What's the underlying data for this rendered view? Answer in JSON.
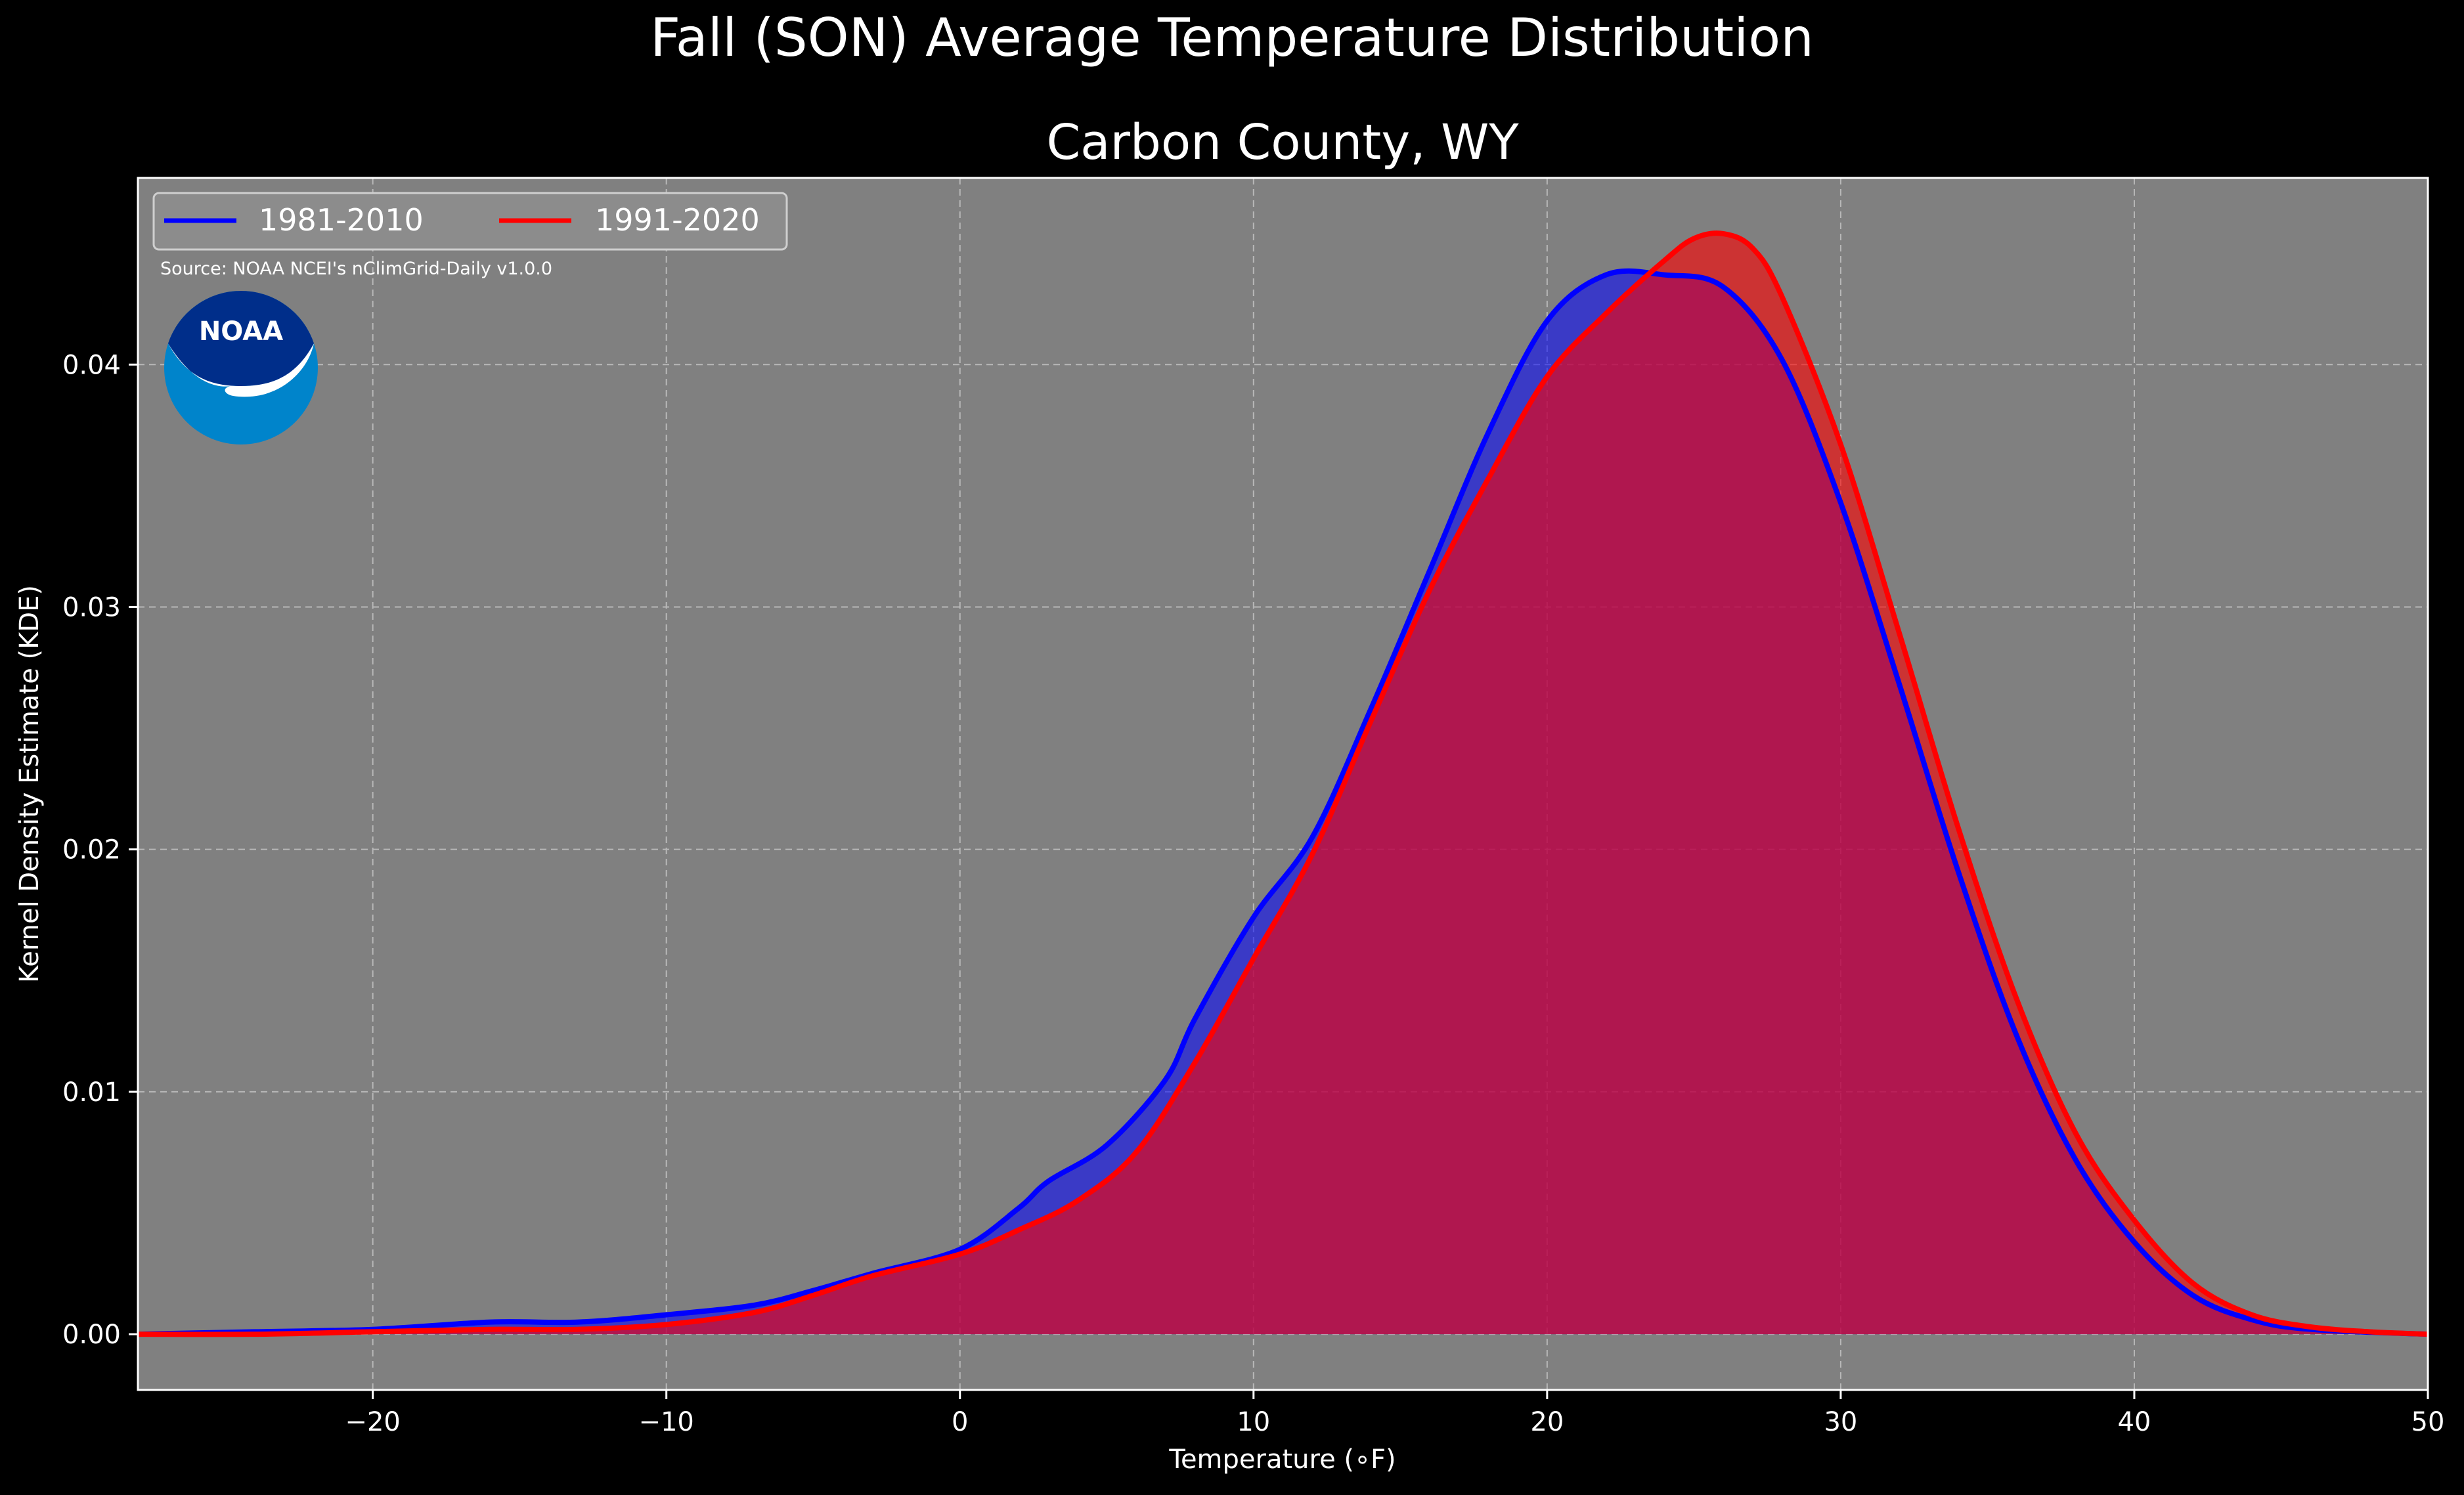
{
  "suptitle": "Fall (SON) Average Temperature Distribution",
  "source_note": "Source: NOAA NCEI's nClimGrid-Daily v1.0.0",
  "logo": {
    "icon": "noaa-logo",
    "text": "NOAA",
    "colors": {
      "outer": "#0084CB",
      "inner": "#002E8A",
      "bird": "#FFFFFF"
    }
  },
  "colors": {
    "background": "#000000",
    "axes_face": "#808080",
    "series_1": "#0000FF",
    "series_2": "#FF0000",
    "fill_overlap": "#A01E5E"
  },
  "chart_data": {
    "type": "area",
    "title": "Carbon County, WY",
    "xlabel": "Temperature (∘F)",
    "ylabel": "Kernel Density Estimate (KDE)",
    "xlim": [
      -28,
      50
    ],
    "ylim": [
      -0.0023,
      0.0477
    ],
    "xticks": [
      -20,
      -10,
      0,
      10,
      20,
      30,
      40,
      50
    ],
    "xtick_labels": [
      "−20",
      "−10",
      "0",
      "10",
      "20",
      "30",
      "40",
      "50"
    ],
    "yticks": [
      0.0,
      0.01,
      0.02,
      0.03,
      0.04
    ],
    "ytick_labels": [
      "0.00",
      "0.01",
      "0.02",
      "0.03",
      "0.04"
    ],
    "grid": true,
    "legend_position": "upper-left",
    "series": [
      {
        "name": "1981-2010",
        "color": "#0000FF",
        "points": [
          [
            -28,
            0
          ],
          [
            -24,
            0.0001
          ],
          [
            -20,
            0.0002
          ],
          [
            -16,
            0.0005
          ],
          [
            -13,
            0.0005
          ],
          [
            -10,
            0.0008
          ],
          [
            -7,
            0.0012
          ],
          [
            -5,
            0.0018
          ],
          [
            -3,
            0.0025
          ],
          [
            0,
            0.0035
          ],
          [
            2,
            0.0052
          ],
          [
            3,
            0.0063
          ],
          [
            5,
            0.0078
          ],
          [
            7,
            0.0105
          ],
          [
            8,
            0.013
          ],
          [
            10,
            0.0172
          ],
          [
            12,
            0.0205
          ],
          [
            14,
            0.0258
          ],
          [
            16,
            0.0315
          ],
          [
            18,
            0.0372
          ],
          [
            20,
            0.0418
          ],
          [
            22,
            0.0437
          ],
          [
            24,
            0.0437
          ],
          [
            26,
            0.0432
          ],
          [
            28,
            0.0402
          ],
          [
            30,
            0.0343
          ],
          [
            32,
            0.0268
          ],
          [
            34,
            0.0191
          ],
          [
            36,
            0.0123
          ],
          [
            38,
            0.0072
          ],
          [
            40,
            0.0038
          ],
          [
            42,
            0.0016
          ],
          [
            44,
            0.0006
          ],
          [
            46,
            0.0002
          ],
          [
            50,
            0
          ]
        ]
      },
      {
        "name": "1991-2020",
        "color": "#FF0000",
        "points": [
          [
            -28,
            0
          ],
          [
            -24,
            0
          ],
          [
            -20,
            0.0001
          ],
          [
            -16,
            0.0002
          ],
          [
            -13,
            0.0002
          ],
          [
            -10,
            0.0004
          ],
          [
            -7,
            0.0009
          ],
          [
            -5,
            0.0016
          ],
          [
            -3,
            0.0024
          ],
          [
            0,
            0.0033
          ],
          [
            2,
            0.0043
          ],
          [
            4,
            0.0055
          ],
          [
            6,
            0.0075
          ],
          [
            8,
            0.0112
          ],
          [
            10,
            0.0155
          ],
          [
            12,
            0.0198
          ],
          [
            14,
            0.0253
          ],
          [
            16,
            0.0307
          ],
          [
            18,
            0.0353
          ],
          [
            20,
            0.0395
          ],
          [
            22,
            0.0421
          ],
          [
            24,
            0.0443
          ],
          [
            25,
            0.0452
          ],
          [
            26,
            0.0454
          ],
          [
            27,
            0.0448
          ],
          [
            28,
            0.0428
          ],
          [
            30,
            0.0367
          ],
          [
            32,
            0.0289
          ],
          [
            34,
            0.0209
          ],
          [
            36,
            0.0138
          ],
          [
            38,
            0.0083
          ],
          [
            40,
            0.0047
          ],
          [
            42,
            0.0021
          ],
          [
            44,
            0.0008
          ],
          [
            46,
            0.0003
          ],
          [
            48,
            0.0001
          ],
          [
            50,
            0
          ]
        ]
      }
    ]
  }
}
